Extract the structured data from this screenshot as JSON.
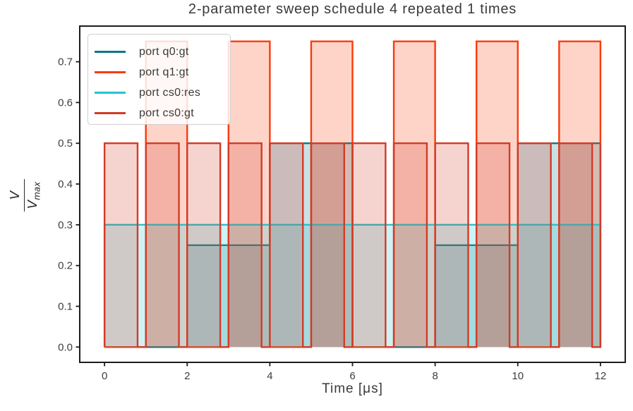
{
  "figure": {
    "title": "2-parameter sweep schedule 4 repeated 1 times",
    "xlabel": "Time [μs]",
    "ylabel": {
      "numerator": "V",
      "denominator_base": "V",
      "denominator_sub": "max"
    }
  },
  "style": {
    "axis_color": "#1c1c1c",
    "tick_label_color": "#3d3d3d",
    "legend_border_color": "#cfcfcf"
  },
  "chart_data": {
    "type": "line",
    "step": "post",
    "title": "2-parameter sweep schedule 4 repeated 1 times",
    "xlabel": "Time [μs]",
    "ylabel": "V / V_max",
    "xlim": [
      -0.6,
      12.6
    ],
    "ylim": [
      -0.0375,
      0.7875
    ],
    "grid": false,
    "legend_position": "upper left",
    "fill_alpha": 0.22,
    "line_width": 2.4,
    "xticks": {
      "values": [
        0,
        2,
        4,
        6,
        8,
        10,
        12
      ],
      "labels": [
        "0",
        "2",
        "4",
        "6",
        "8",
        "10",
        "12"
      ]
    },
    "yticks": {
      "values": [
        0.0,
        0.1,
        0.2,
        0.3,
        0.4,
        0.5,
        0.6,
        0.7
      ],
      "labels": [
        "0.0",
        "0.1",
        "0.2",
        "0.3",
        "0.4",
        "0.5",
        "0.6",
        "0.7"
      ]
    },
    "series": [
      {
        "name": "port q0:gt",
        "color": "#0e7886",
        "points": [
          [
            0,
            0
          ],
          [
            2,
            0.25
          ],
          [
            4,
            0.5
          ],
          [
            6,
            0
          ],
          [
            8,
            0.25
          ],
          [
            10,
            0.5
          ],
          [
            12,
            0.5
          ]
        ]
      },
      {
        "name": "port q1:gt",
        "color": "#f93b0b",
        "points": [
          [
            0,
            0
          ],
          [
            1,
            0.75
          ],
          [
            2,
            0
          ],
          [
            3,
            0.75
          ],
          [
            4,
            0
          ],
          [
            5,
            0.75
          ],
          [
            6,
            0
          ],
          [
            7,
            0.75
          ],
          [
            8,
            0
          ],
          [
            9,
            0.75
          ],
          [
            10,
            0
          ],
          [
            11,
            0.75
          ],
          [
            12,
            0
          ]
        ]
      },
      {
        "name": "port cs0:res",
        "color": "#25c3ce",
        "points": [
          [
            0,
            0.3
          ],
          [
            12,
            0.3
          ]
        ]
      },
      {
        "name": "port cs0:gt",
        "color": "#d23b27",
        "points": [
          [
            0,
            0.5
          ],
          [
            0.8,
            0
          ],
          [
            1,
            0.5
          ],
          [
            1.8,
            0
          ],
          [
            2,
            0.5
          ],
          [
            2.8,
            0
          ],
          [
            3,
            0.5
          ],
          [
            3.8,
            0
          ],
          [
            4,
            0.5
          ],
          [
            4.8,
            0
          ],
          [
            5,
            0.5
          ],
          [
            5.8,
            0
          ],
          [
            6,
            0.5
          ],
          [
            6.8,
            0
          ],
          [
            7,
            0.5
          ],
          [
            7.8,
            0
          ],
          [
            8,
            0.5
          ],
          [
            8.8,
            0
          ],
          [
            9,
            0.5
          ],
          [
            9.8,
            0
          ],
          [
            10,
            0.5
          ],
          [
            10.8,
            0
          ],
          [
            11,
            0.5
          ],
          [
            11.8,
            0
          ],
          [
            12,
            0.5
          ]
        ]
      }
    ]
  }
}
